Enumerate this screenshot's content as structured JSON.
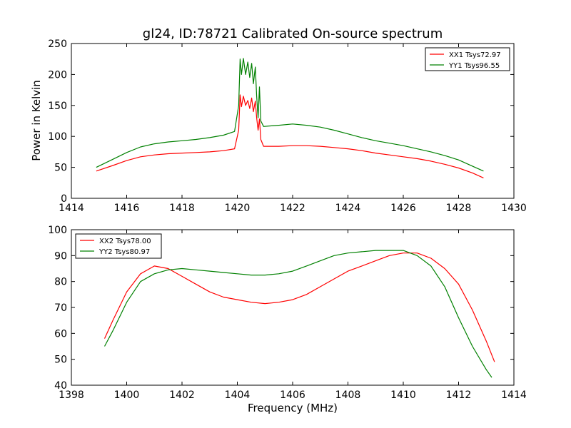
{
  "chart_data": [
    {
      "type": "line",
      "title": "gl24, ID:78721 Calibrated On-source spectrum",
      "xlabel": "",
      "ylabel": "Power in Kelvin",
      "xlim": [
        1414,
        1430
      ],
      "ylim": [
        0,
        250
      ],
      "xticks": [
        1414,
        1416,
        1418,
        1420,
        1422,
        1424,
        1426,
        1428,
        1430
      ],
      "yticks": [
        0,
        50,
        100,
        150,
        200,
        250
      ],
      "legend": "top-right",
      "grid": false,
      "series": [
        {
          "name": "XX1 Tsys72.97",
          "color": "#ff0000",
          "x": [
            1414.9,
            1415.5,
            1416.0,
            1416.5,
            1417.0,
            1417.5,
            1418.0,
            1418.5,
            1419.0,
            1419.5,
            1419.9,
            1420.05,
            1420.1,
            1420.15,
            1420.22,
            1420.3,
            1420.38,
            1420.45,
            1420.52,
            1420.58,
            1420.65,
            1420.7,
            1420.75,
            1420.8,
            1420.85,
            1420.95,
            1421.5,
            1422.0,
            1422.5,
            1423.0,
            1423.5,
            1424.0,
            1424.5,
            1425.0,
            1425.5,
            1426.0,
            1426.5,
            1427.0,
            1427.5,
            1428.0,
            1428.5,
            1428.9
          ],
          "y": [
            44,
            53,
            61,
            67,
            70,
            72,
            73,
            74,
            75,
            77,
            80,
            110,
            167,
            148,
            165,
            150,
            158,
            145,
            162,
            140,
            157,
            130,
            110,
            128,
            95,
            84,
            84,
            85,
            85,
            84,
            82,
            80,
            77,
            73,
            70,
            67,
            64,
            60,
            55,
            49,
            41,
            33
          ]
        },
        {
          "name": "YY1 Tsys96.55",
          "color": "#008000",
          "x": [
            1414.9,
            1415.5,
            1416.0,
            1416.5,
            1417.0,
            1417.5,
            1418.0,
            1418.5,
            1419.0,
            1419.5,
            1419.9,
            1420.05,
            1420.1,
            1420.15,
            1420.22,
            1420.3,
            1420.38,
            1420.45,
            1420.52,
            1420.58,
            1420.65,
            1420.7,
            1420.75,
            1420.8,
            1420.85,
            1420.95,
            1421.5,
            1422.0,
            1422.5,
            1423.0,
            1423.5,
            1424.0,
            1424.5,
            1425.0,
            1425.5,
            1426.0,
            1426.5,
            1427.0,
            1427.5,
            1428.0,
            1428.5,
            1428.9
          ],
          "y": [
            50,
            63,
            74,
            83,
            88,
            91,
            93,
            95,
            98,
            102,
            108,
            150,
            225,
            200,
            226,
            200,
            220,
            195,
            218,
            185,
            212,
            165,
            130,
            180,
            125,
            116,
            118,
            120,
            118,
            115,
            110,
            104,
            98,
            93,
            89,
            85,
            80,
            75,
            69,
            62,
            52,
            44
          ]
        }
      ]
    },
    {
      "type": "line",
      "title": "",
      "xlabel": "Frequency (MHz)",
      "ylabel": "",
      "xlim": [
        1398,
        1414
      ],
      "ylim": [
        40,
        100
      ],
      "xticks": [
        1398,
        1400,
        1402,
        1404,
        1406,
        1408,
        1410,
        1412,
        1414
      ],
      "yticks": [
        40,
        50,
        60,
        70,
        80,
        90,
        100
      ],
      "legend": "top-left",
      "grid": false,
      "series": [
        {
          "name": "XX2 Tsys78.00",
          "color": "#ff0000",
          "x": [
            1399.2,
            1399.5,
            1400.0,
            1400.5,
            1401.0,
            1401.5,
            1402.0,
            1402.5,
            1403.0,
            1403.5,
            1404.0,
            1404.5,
            1405.0,
            1405.5,
            1406.0,
            1406.5,
            1407.0,
            1407.5,
            1408.0,
            1408.5,
            1409.0,
            1409.5,
            1410.0,
            1410.5,
            1411.0,
            1411.5,
            1412.0,
            1412.5,
            1413.0,
            1413.3
          ],
          "y": [
            58,
            65,
            76,
            83,
            86,
            85,
            82,
            79,
            76,
            74,
            73,
            72,
            71.5,
            72,
            73,
            75,
            78,
            81,
            84,
            86,
            88,
            90,
            91,
            91,
            89,
            85,
            79,
            69,
            57,
            49
          ]
        },
        {
          "name": "YY2 Tsys80.97",
          "color": "#008000",
          "x": [
            1399.2,
            1399.5,
            1400.0,
            1400.5,
            1401.0,
            1401.5,
            1402.0,
            1402.5,
            1403.0,
            1403.5,
            1404.0,
            1404.5,
            1405.0,
            1405.5,
            1406.0,
            1406.5,
            1407.0,
            1407.5,
            1408.0,
            1408.5,
            1409.0,
            1409.5,
            1410.0,
            1410.5,
            1411.0,
            1411.5,
            1412.0,
            1412.5,
            1413.0,
            1413.2
          ],
          "y": [
            55,
            61,
            72,
            80,
            83,
            84.5,
            85,
            84.5,
            84,
            83.5,
            83,
            82.5,
            82.5,
            83,
            84,
            86,
            88,
            90,
            91,
            91.5,
            92,
            92,
            92,
            90,
            86,
            78,
            66,
            55,
            46,
            43
          ]
        }
      ]
    }
  ]
}
